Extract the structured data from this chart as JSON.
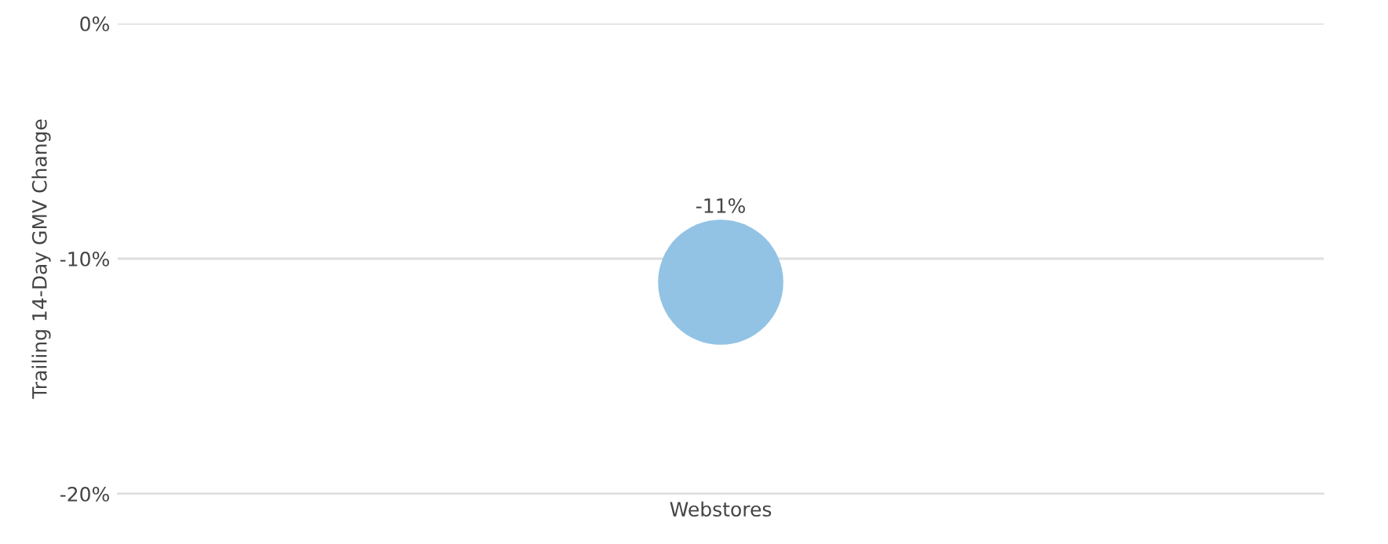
{
  "chart_data": {
    "type": "scatter",
    "ylabel": "Trailing 14-Day GMV Change",
    "categories": [
      "Webstores"
    ],
    "values": [
      -11
    ],
    "color": "#92c3e5",
    "marker": "circle",
    "value_labels": [
      "-11%"
    ],
    "ylim": [
      -20,
      0
    ],
    "yticks": [
      {
        "value": 0,
        "label": "0%"
      },
      {
        "value": -10,
        "label": "-10%"
      },
      {
        "value": -20,
        "label": "-20%"
      }
    ],
    "grid": "y"
  }
}
